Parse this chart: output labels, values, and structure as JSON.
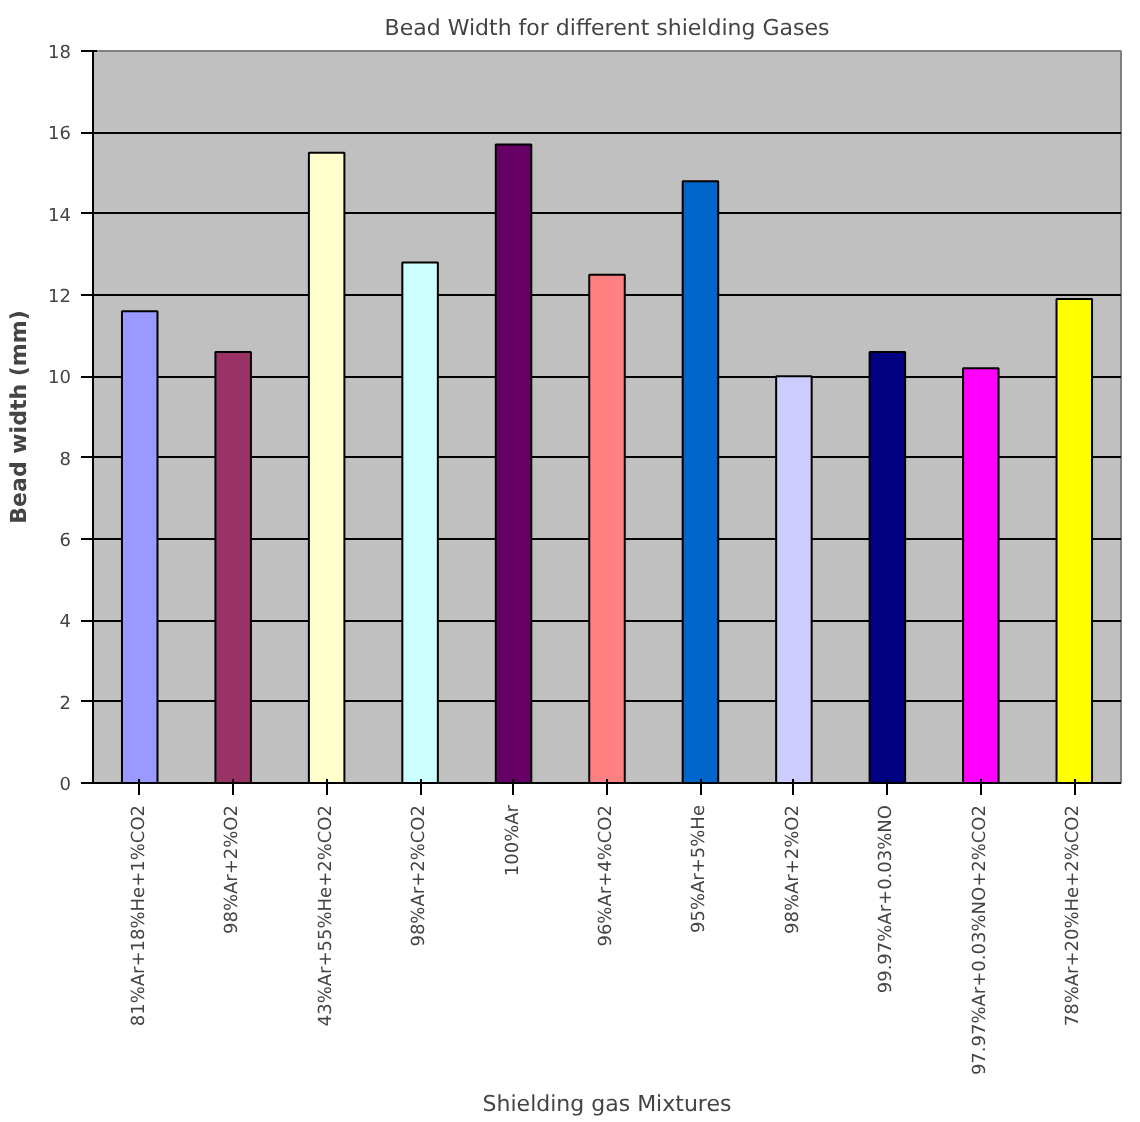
{
  "chart_data": {
    "type": "bar",
    "title": "Bead Width for different shielding Gases",
    "xlabel": "Shielding gas Mixtures",
    "ylabel": "Bead width (mm)",
    "categories": [
      "81%Ar+18%He+1%CO2",
      "98%Ar+2%O2",
      "43%Ar+55%He+2%CO2",
      "98%Ar+2%CO2",
      "100%Ar",
      "96%Ar+4%CO2",
      "95%Ar+5%He",
      "98%Ar+2%O2",
      "99.97%Ar+0.03%NO",
      "97.97%Ar+0.03%NO+2%CO2",
      "78%Ar+20%He+2%CO2"
    ],
    "values": [
      11.6,
      10.6,
      15.5,
      12.8,
      15.7,
      12.5,
      14.8,
      10.0,
      10.6,
      10.2,
      11.9
    ],
    "colors": [
      "#9999ff",
      "#993366",
      "#ffffcc",
      "#ccffff",
      "#660066",
      "#ff8080",
      "#0066cc",
      "#ccccff",
      "#000080",
      "#ff00ff",
      "#ffff00"
    ],
    "ylim": [
      0,
      18
    ],
    "yticks": [
      0,
      2,
      4,
      6,
      8,
      10,
      12,
      14,
      16,
      18
    ],
    "grid": "y"
  }
}
